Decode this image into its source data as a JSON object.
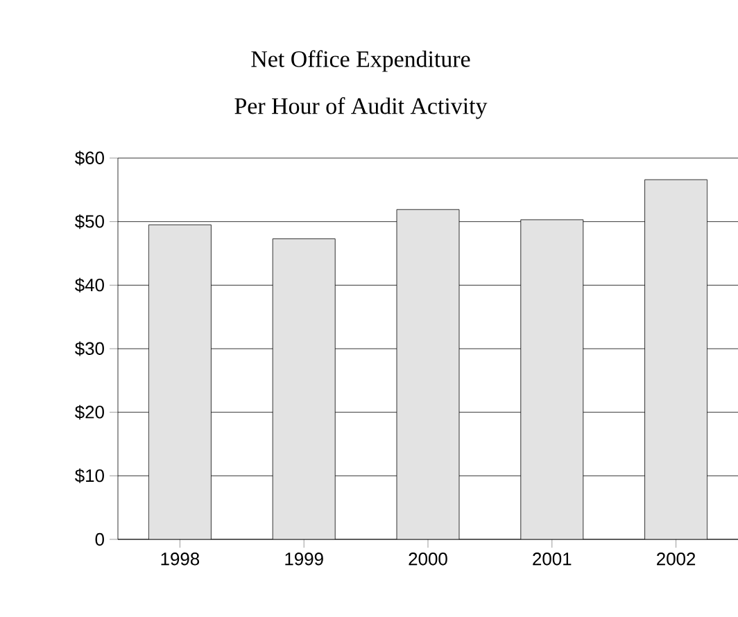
{
  "chart_data": {
    "type": "bar",
    "title": "Net Office Expenditure",
    "subtitle": "Per Hour of Audit Activity",
    "categories": [
      "1998",
      "1999",
      "2000",
      "2001",
      "2002"
    ],
    "values": [
      49.5,
      47.3,
      51.9,
      50.3,
      56.6
    ],
    "color": "#e3e3e3",
    "ylim": [
      0,
      60
    ],
    "yticks": [
      {
        "value": 0,
        "label": "0"
      },
      {
        "value": 10,
        "label": "$10"
      },
      {
        "value": 20,
        "label": "$20"
      },
      {
        "value": 30,
        "label": "$30"
      },
      {
        "value": 40,
        "label": "$40"
      },
      {
        "value": 50,
        "label": "$50"
      },
      {
        "value": 60,
        "label": "$60"
      }
    ],
    "grid": "y"
  }
}
